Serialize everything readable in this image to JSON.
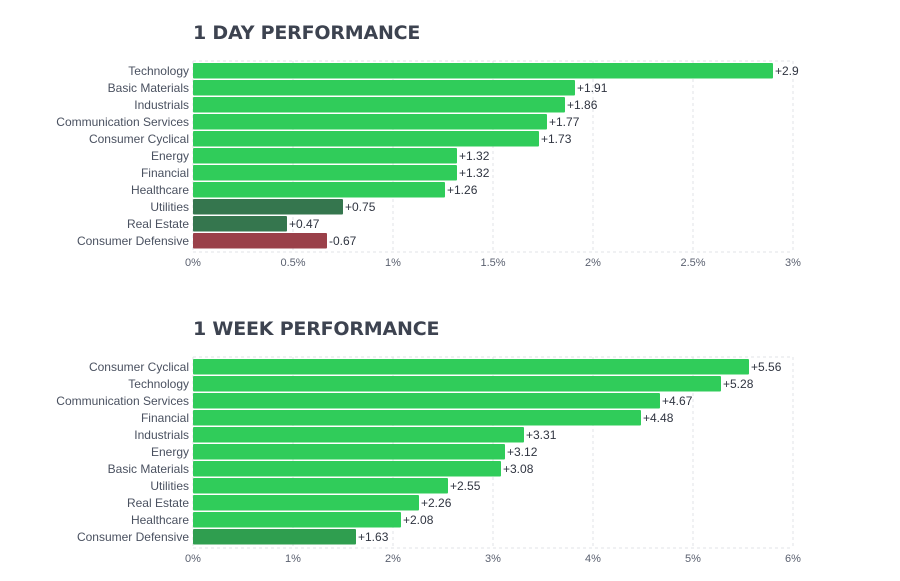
{
  "colors": {
    "positive_strong": "#30cc5a",
    "positive_medium": "#2f9e4f",
    "positive_weak": "#35764e",
    "negative": "#9a4049",
    "grid": "#e1e3e7",
    "title": "#3d4350"
  },
  "chart_data": [
    {
      "type": "bar",
      "orientation": "horizontal",
      "title": "1 DAY PERFORMANCE",
      "categories": [
        "Technology",
        "Basic Materials",
        "Industrials",
        "Communication Services",
        "Consumer Cyclical",
        "Energy",
        "Financial",
        "Healthcare",
        "Utilities",
        "Real Estate",
        "Consumer Defensive"
      ],
      "values": [
        2.9,
        1.91,
        1.86,
        1.77,
        1.73,
        1.32,
        1.32,
        1.26,
        0.75,
        0.47,
        -0.67
      ],
      "value_labels": [
        "+2.9",
        "+1.91",
        "+1.86",
        "+1.77",
        "+1.73",
        "+1.32",
        "+1.32",
        "+1.26",
        "+0.75",
        "+0.47",
        "-0.67"
      ],
      "bar_colors": [
        "#30cc5a",
        "#30cc5a",
        "#30cc5a",
        "#30cc5a",
        "#30cc5a",
        "#30cc5a",
        "#30cc5a",
        "#30cc5a",
        "#35764e",
        "#35764e",
        "#9a4049"
      ],
      "xlim": [
        0,
        3
      ],
      "xticks": [
        0,
        0.5,
        1,
        1.5,
        2,
        2.5,
        3
      ],
      "xtick_labels": [
        "0%",
        "0.5%",
        "1%",
        "1.5%",
        "2%",
        "2.5%",
        "3%"
      ],
      "bar_length": "absolute value",
      "grid": true
    },
    {
      "type": "bar",
      "orientation": "horizontal",
      "title": "1 WEEK PERFORMANCE",
      "categories": [
        "Consumer Cyclical",
        "Technology",
        "Communication Services",
        "Financial",
        "Industrials",
        "Energy",
        "Basic Materials",
        "Utilities",
        "Real Estate",
        "Healthcare",
        "Consumer Defensive"
      ],
      "values": [
        5.56,
        5.28,
        4.67,
        4.48,
        3.31,
        3.12,
        3.08,
        2.55,
        2.26,
        2.08,
        1.63
      ],
      "value_labels": [
        "+5.56",
        "+5.28",
        "+4.67",
        "+4.48",
        "+3.31",
        "+3.12",
        "+3.08",
        "+2.55",
        "+2.26",
        "+2.08",
        "+1.63"
      ],
      "bar_colors": [
        "#30cc5a",
        "#30cc5a",
        "#30cc5a",
        "#30cc5a",
        "#30cc5a",
        "#30cc5a",
        "#30cc5a",
        "#30cc5a",
        "#30cc5a",
        "#30cc5a",
        "#2f9e4f"
      ],
      "xlim": [
        0,
        6
      ],
      "xticks": [
        0,
        1,
        2,
        3,
        4,
        5,
        6
      ],
      "xtick_labels": [
        "0%",
        "1%",
        "2%",
        "3%",
        "4%",
        "5%",
        "6%"
      ],
      "bar_length": "absolute value",
      "grid": true
    }
  ]
}
